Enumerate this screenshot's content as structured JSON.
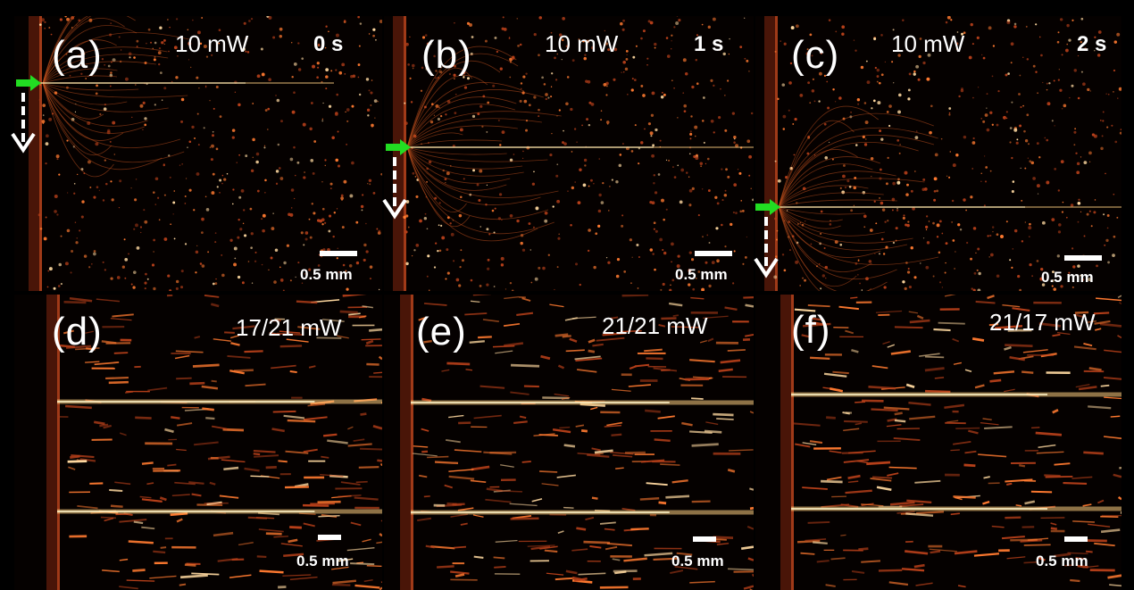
{
  "figure": {
    "panels": [
      {
        "id": "a",
        "label": "(a)",
        "power": "10 mW",
        "time": "0 s",
        "scale": "0.5 mm",
        "type": "single"
      },
      {
        "id": "b",
        "label": "(b)",
        "power": "10 mW",
        "time": "1 s",
        "scale": "0.5 mm",
        "type": "single"
      },
      {
        "id": "c",
        "label": "(c)",
        "power": "10 mW",
        "time": "2 s",
        "scale": "0.5 mm",
        "type": "single"
      },
      {
        "id": "d",
        "label": "(d)",
        "power": "17/21 mW",
        "time": "",
        "scale": "0.5 mm",
        "type": "dual"
      },
      {
        "id": "e",
        "label": "(e)",
        "power": "21/21 mW",
        "time": "",
        "scale": "0.5 mm",
        "type": "dual"
      },
      {
        "id": "f",
        "label": "(f)",
        "power": "21/17 mW",
        "time": "",
        "scale": "0.5 mm",
        "type": "dual"
      }
    ],
    "colors": {
      "background": "#000000",
      "arrow_green": "#22dd22",
      "arrow_white": "#ffffff",
      "particle_warm": "#ff8a3c",
      "beam_yellow": "#ffe9a0"
    }
  }
}
